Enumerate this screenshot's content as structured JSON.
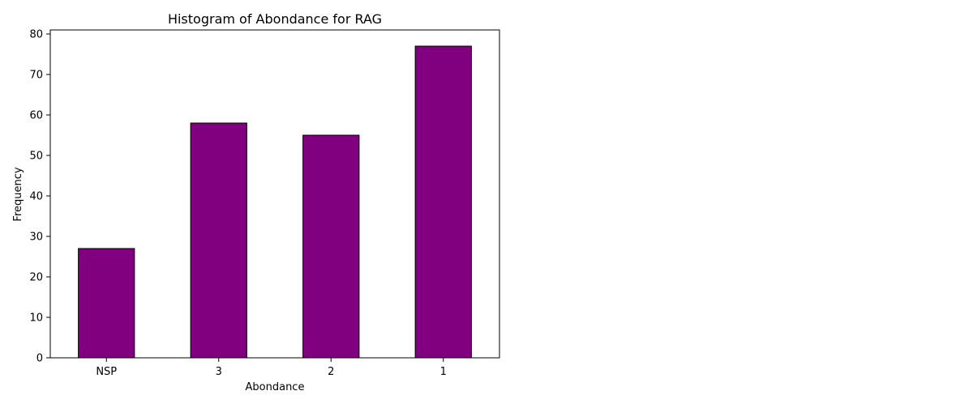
{
  "chart_data": {
    "type": "bar",
    "title": "Histogram of Abondance for RAG",
    "xlabel": "Abondance",
    "ylabel": "Frequency",
    "categories": [
      "NSP",
      "3",
      "2",
      "1"
    ],
    "values": [
      27,
      58,
      55,
      77
    ],
    "ylim": [
      0,
      81
    ],
    "yticks": [
      0,
      10,
      20,
      30,
      40,
      50,
      60,
      70,
      80
    ],
    "grid": false,
    "legend": "none",
    "colors": {
      "bar_fill": "#800080",
      "bar_edge": "#000000",
      "axis": "#000000",
      "background": "#ffffff"
    }
  }
}
